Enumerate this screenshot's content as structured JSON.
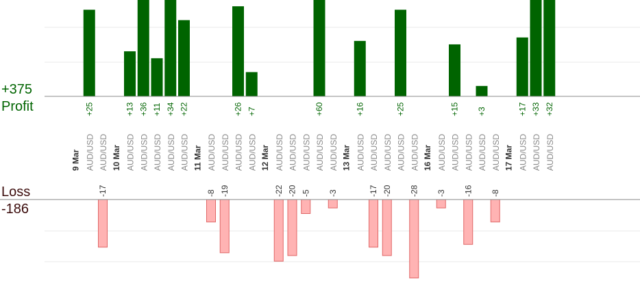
{
  "summary": {
    "profit_total": "+375",
    "profit_label": "Profit",
    "loss_label": "Loss",
    "loss_total": "-186"
  },
  "colors": {
    "profit_bar": "#006400",
    "profit_text": "#006400",
    "loss_bar": "#ffb3b3",
    "loss_border": "#e06666",
    "loss_text": "#333333",
    "axis": "#888888",
    "grid": "#e8e8e8",
    "date_text": "#333333",
    "symbol_text": "#888888"
  },
  "chart_data": {
    "type": "bar",
    "title": "",
    "xlabel": "",
    "ylabel": "",
    "grid": true,
    "ylim_profit": [
      0,
      30
    ],
    "ylim_loss": [
      -25,
      0
    ],
    "x": [
      {
        "label": "9 Mar",
        "kind": "date"
      },
      {
        "label": "AUD/USD",
        "kind": "trade",
        "value": 25
      },
      {
        "label": "AUD/USD",
        "kind": "trade",
        "value": -17
      },
      {
        "label": "10 Mar",
        "kind": "date"
      },
      {
        "label": "AUD/USD",
        "kind": "trade",
        "value": 13
      },
      {
        "label": "AUD/USD",
        "kind": "trade",
        "value": 36
      },
      {
        "label": "AUD/USD",
        "kind": "trade",
        "value": 11
      },
      {
        "label": "AUD/USD",
        "kind": "trade",
        "value": 34
      },
      {
        "label": "AUD/USD",
        "kind": "trade",
        "value": 22
      },
      {
        "label": "11 Mar",
        "kind": "date"
      },
      {
        "label": "AUD/USD",
        "kind": "trade",
        "value": -8
      },
      {
        "label": "AUD/USD",
        "kind": "trade",
        "value": -19
      },
      {
        "label": "AUD/USD",
        "kind": "trade",
        "value": 26
      },
      {
        "label": "AUD/USD",
        "kind": "trade",
        "value": 7
      },
      {
        "label": "12 Mar",
        "kind": "date"
      },
      {
        "label": "AUD/USD",
        "kind": "trade",
        "value": -22
      },
      {
        "label": "AUD/USD",
        "kind": "trade",
        "value": -20
      },
      {
        "label": "AUD/USD",
        "kind": "trade",
        "value": -5
      },
      {
        "label": "AUD/USD",
        "kind": "trade",
        "value": 60
      },
      {
        "label": "AUD/USD",
        "kind": "trade",
        "value": -3
      },
      {
        "label": "13 Mar",
        "kind": "date"
      },
      {
        "label": "AUD/USD",
        "kind": "trade",
        "value": 16
      },
      {
        "label": "AUD/USD",
        "kind": "trade",
        "value": -17
      },
      {
        "label": "AUD/USD",
        "kind": "trade",
        "value": -20
      },
      {
        "label": "AUD/USD",
        "kind": "trade",
        "value": 25
      },
      {
        "label": "AUD/USD",
        "kind": "trade",
        "value": -28
      },
      {
        "label": "16 Mar",
        "kind": "date"
      },
      {
        "label": "AUD/USD",
        "kind": "trade",
        "value": -3
      },
      {
        "label": "AUD/USD",
        "kind": "trade",
        "value": 15
      },
      {
        "label": "AUD/USD",
        "kind": "trade",
        "value": -16
      },
      {
        "label": "AUD/USD",
        "kind": "trade",
        "value": 3
      },
      {
        "label": "AUD/USD",
        "kind": "trade",
        "value": -8
      },
      {
        "label": "17 Mar",
        "kind": "date"
      },
      {
        "label": "AUD/USD",
        "kind": "trade",
        "value": 17
      },
      {
        "label": "AUD/USD",
        "kind": "trade",
        "value": 33
      },
      {
        "label": "AUD/USD",
        "kind": "trade",
        "value": 32
      }
    ]
  }
}
